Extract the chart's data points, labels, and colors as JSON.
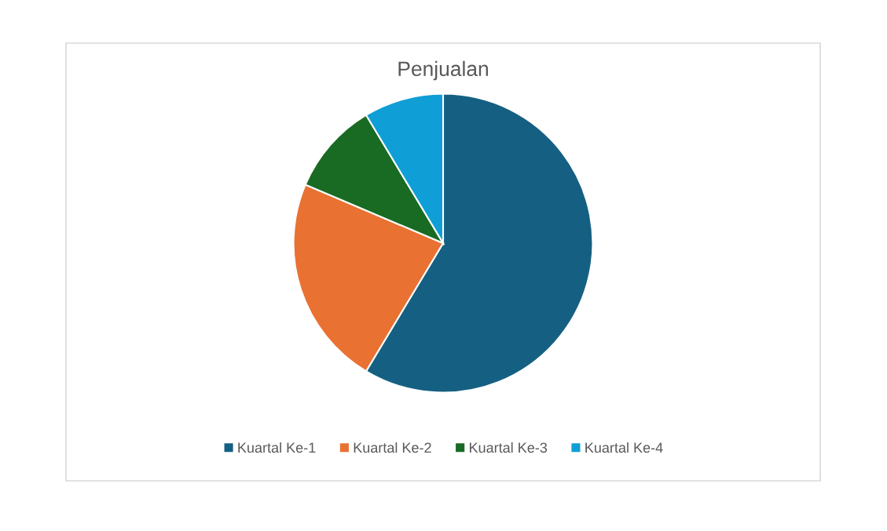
{
  "chart_data": {
    "type": "pie",
    "title": "Penjualan",
    "categories": [
      "Kuartal Ke-1",
      "Kuartal Ke-2",
      "Kuartal Ke-3",
      "Kuartal Ke-4"
    ],
    "values": [
      58.6,
      22.8,
      10.0,
      8.6
    ],
    "colors": [
      "#156082",
      "#e97132",
      "#196b24",
      "#0f9ed5"
    ],
    "legend": "bottom"
  }
}
